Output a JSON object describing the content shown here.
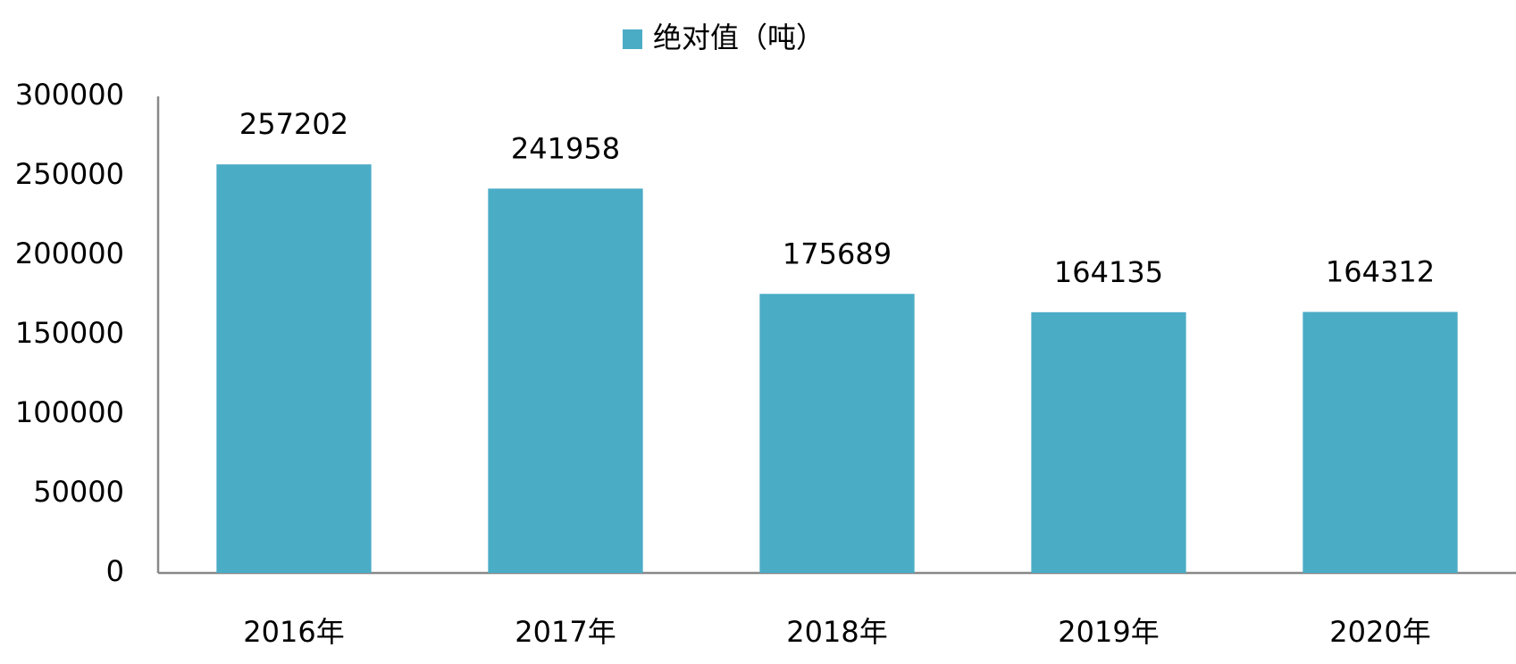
{
  "chart_data": {
    "type": "bar",
    "categories": [
      "2016年",
      "2017年",
      "2018年",
      "2019年",
      "2020年"
    ],
    "series": [
      {
        "name": "绝对值（吨）",
        "color": "#4bacc6",
        "values": [
          257202,
          241958,
          175689,
          164135,
          164312
        ]
      }
    ],
    "ylim": [
      0,
      300000
    ],
    "yticks": [
      0,
      50000,
      100000,
      150000,
      200000,
      250000,
      300000
    ],
    "grid": false,
    "legend": "top",
    "data_labels": true
  }
}
